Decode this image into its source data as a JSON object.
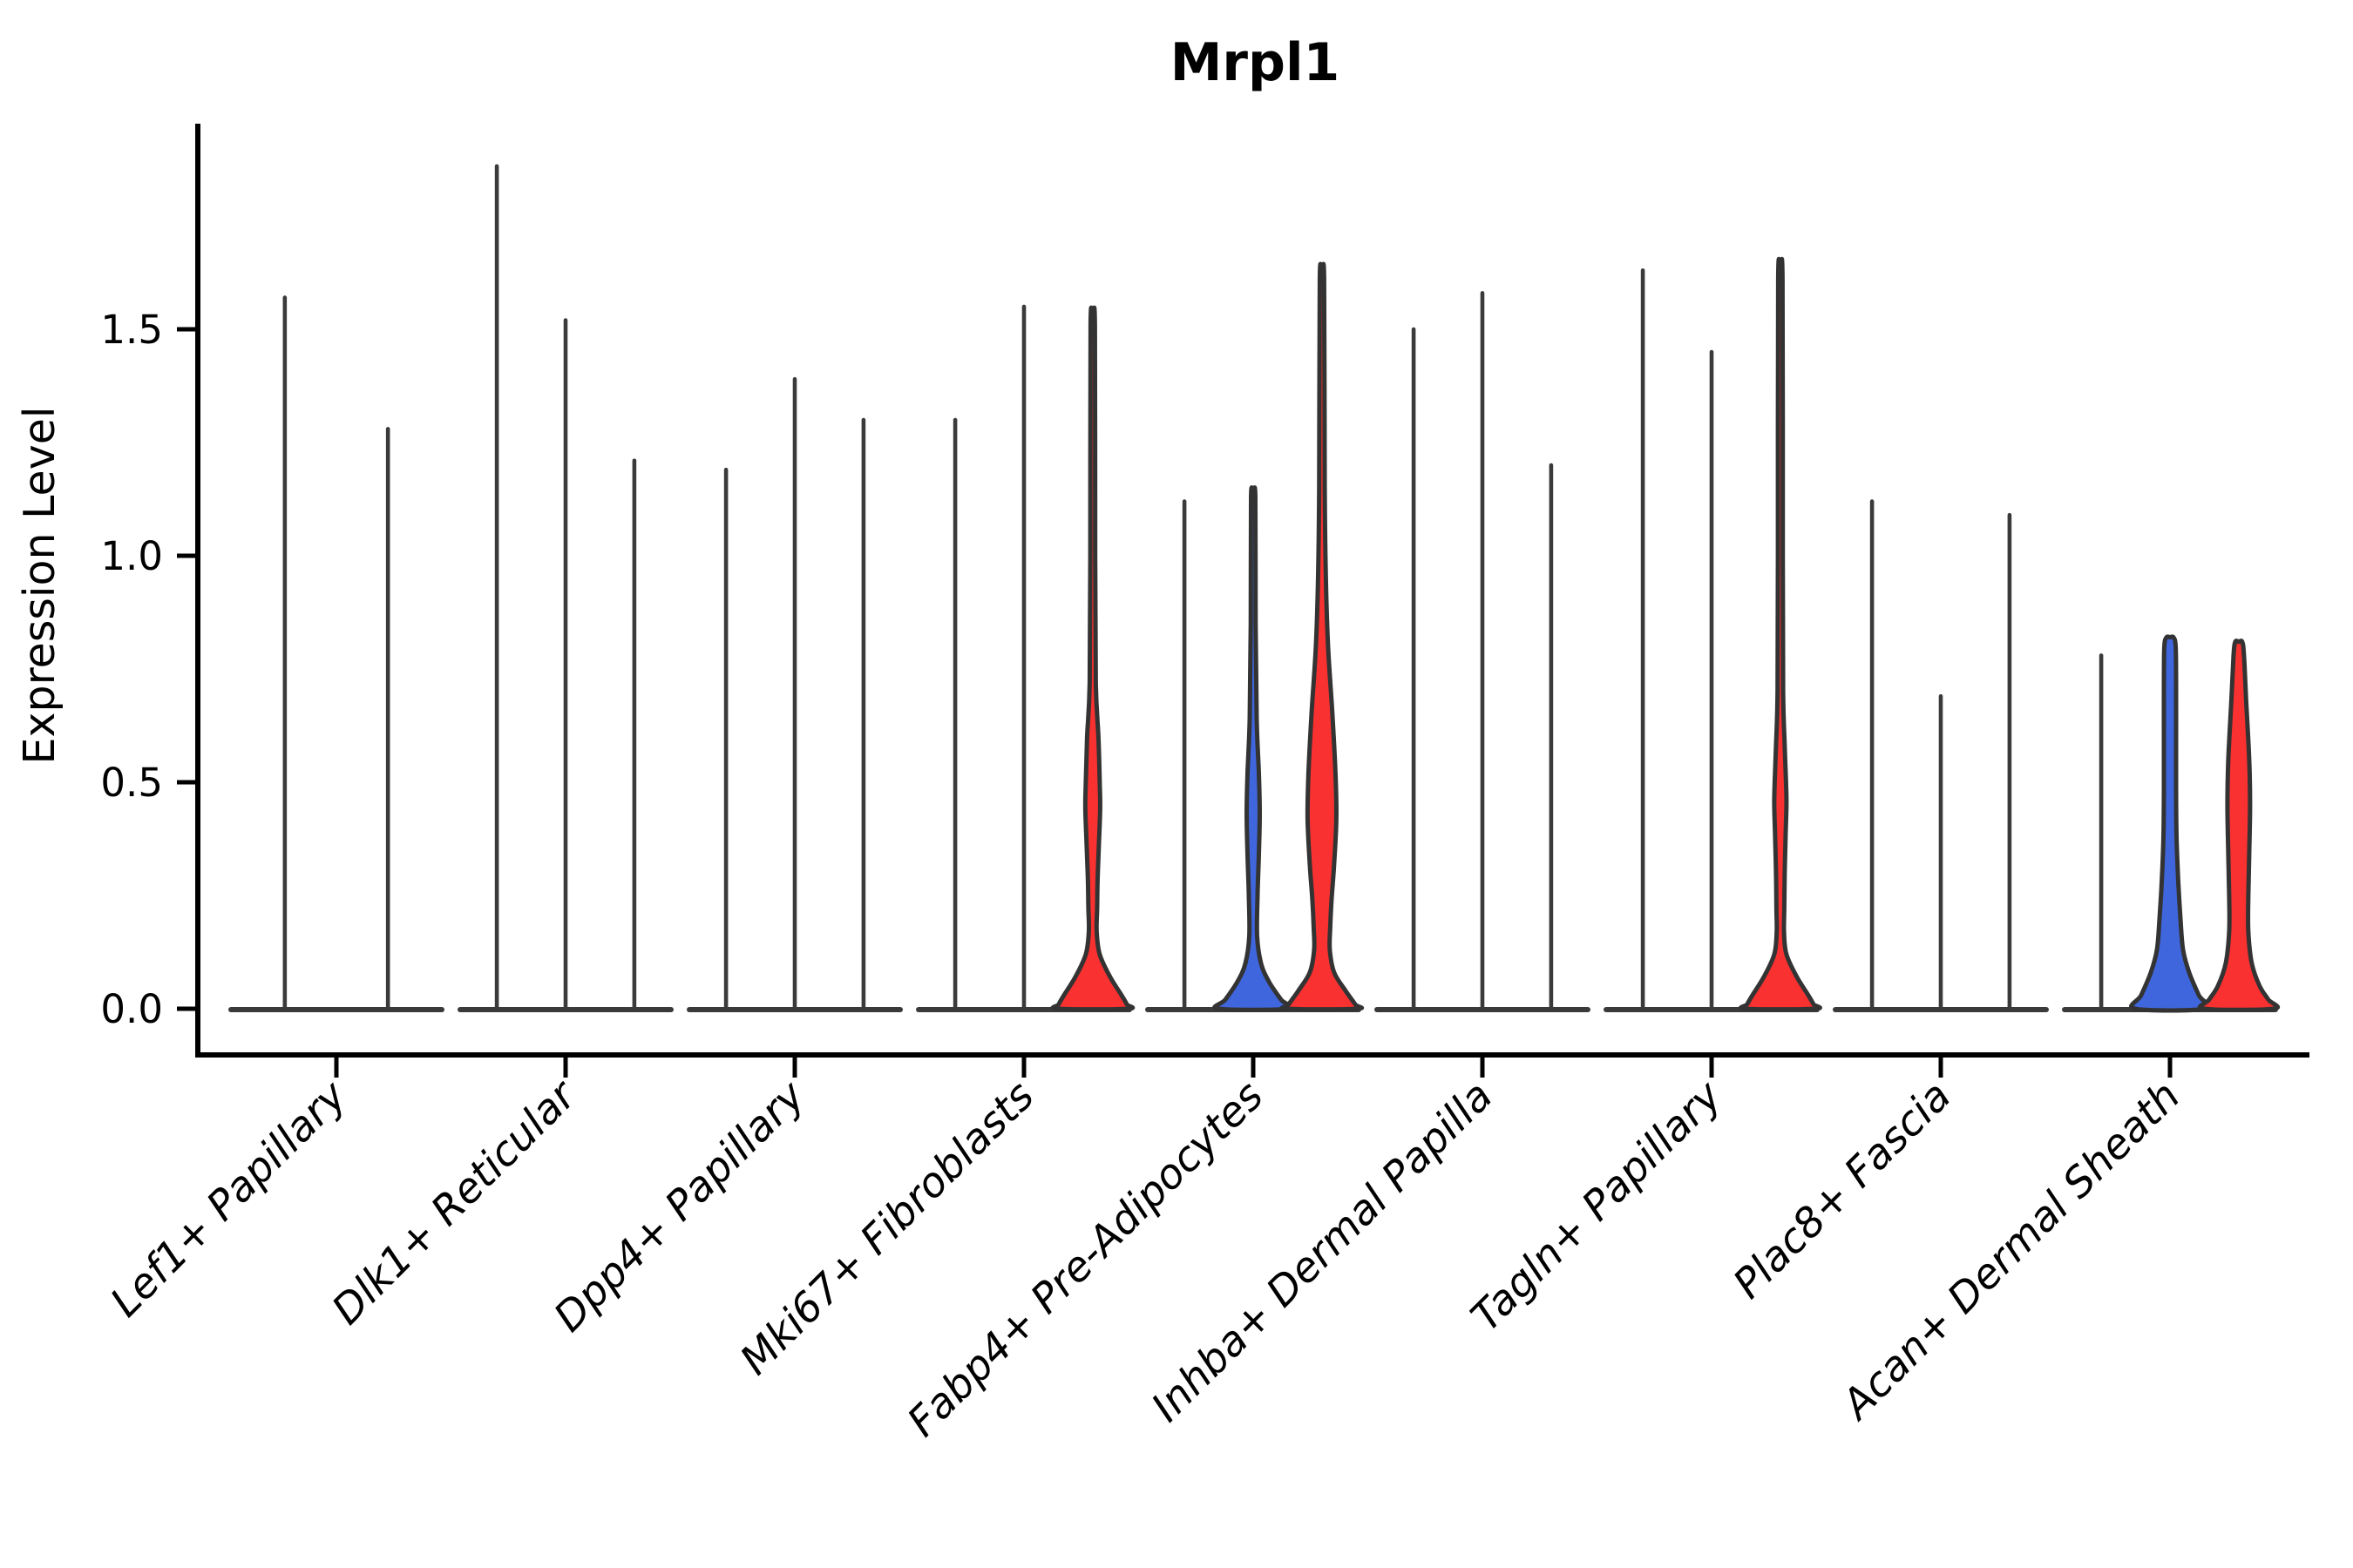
{
  "chart_data": {
    "type": "violin",
    "title": "Mrpl1",
    "ylabel": "Expression Level",
    "xlabel": "",
    "ylim": [
      0,
      1.95
    ],
    "grid": false,
    "legend": "none",
    "ytick_labels": [
      "0.0",
      "0.5",
      "1.0",
      "1.5"
    ],
    "ytick_values": [
      0.0,
      0.5,
      1.0,
      1.5
    ],
    "colors": {
      "red_fill": "#f93131",
      "blue_fill": "#3f66dc",
      "violin_outline": "#333333",
      "spike_line": "#3a3a3a",
      "axis": "#000000"
    },
    "categories": [
      "Lef1+ Papillary",
      "Dlk1+ Reticular",
      "Dpp4+ Papillary",
      "Mki67+ Fibroblasts",
      "Fabp4+ Pre-Adipocytes",
      "Inhba+ Dermal Papilla",
      "Tagln+ Papillary",
      "Plac8+ Fascia",
      "Acan+ Dermal Sheath"
    ],
    "groups": [
      {
        "category": "Lef1+ Papillary",
        "violins": [
          {
            "offset": -0.225,
            "max": 1.57,
            "fill": "none",
            "shape": "spike"
          },
          {
            "offset": 0.225,
            "max": 1.28,
            "fill": "none",
            "shape": "spike"
          }
        ]
      },
      {
        "category": "Dlk1+ Reticular",
        "violins": [
          {
            "offset": -0.3,
            "max": 1.86,
            "fill": "none",
            "shape": "spike"
          },
          {
            "offset": 0,
            "max": 1.52,
            "fill": "none",
            "shape": "spike"
          },
          {
            "offset": 0.3,
            "max": 1.21,
            "fill": "none",
            "shape": "spike"
          }
        ]
      },
      {
        "category": "Dpp4+ Papillary",
        "violins": [
          {
            "offset": -0.3,
            "max": 1.19,
            "fill": "none",
            "shape": "spike"
          },
          {
            "offset": 0,
            "max": 1.39,
            "fill": "none",
            "shape": "spike"
          },
          {
            "offset": 0.3,
            "max": 1.3,
            "fill": "none",
            "shape": "spike"
          }
        ]
      },
      {
        "category": "Mki67+ Fibroblasts",
        "violins": [
          {
            "offset": -0.3,
            "max": 1.3,
            "fill": "none",
            "shape": "spike"
          },
          {
            "offset": 0,
            "max": 1.55,
            "fill": "none",
            "shape": "spike"
          },
          {
            "offset": 0.3,
            "max": 1.51,
            "fill": "red",
            "shape": "violin",
            "profile": [
              [
                1.51,
                2.5
              ],
              [
                1.0,
                2.8
              ],
              [
                0.72,
                3.5
              ],
              [
                0.6,
                6.5
              ],
              [
                0.5,
                8
              ],
              [
                0.44,
                8.5
              ],
              [
                0.36,
                7
              ],
              [
                0.28,
                5.5
              ],
              [
                0.22,
                5
              ],
              [
                0.17,
                4.5
              ],
              [
                0.12,
                8
              ],
              [
                0.07,
                20
              ],
              [
                0.03,
                33
              ],
              [
                0.01,
                39
              ],
              [
                0,
                40
              ]
            ]
          }
        ]
      },
      {
        "category": "Fabp4+ Pre-Adipocytes",
        "violins": [
          {
            "offset": -0.3,
            "max": 1.12,
            "fill": "none",
            "shape": "spike"
          },
          {
            "offset": 0,
            "max": 1.13,
            "fill": "blue",
            "shape": "violin",
            "profile": [
              [
                1.13,
                2.5
              ],
              [
                0.85,
                2.8
              ],
              [
                0.64,
                4
              ],
              [
                0.52,
                6.5
              ],
              [
                0.43,
                7.5
              ],
              [
                0.34,
                6.5
              ],
              [
                0.25,
                5
              ],
              [
                0.16,
                4.5
              ],
              [
                0.1,
                9
              ],
              [
                0.06,
                18
              ],
              [
                0.02,
                32
              ],
              [
                0,
                40
              ]
            ]
          },
          {
            "offset": 0.3,
            "max": 1.61,
            "fill": "red",
            "shape": "violin",
            "profile": [
              [
                1.61,
                2.5
              ],
              [
                1.15,
                3.2
              ],
              [
                0.95,
                4.5
              ],
              [
                0.8,
                7
              ],
              [
                0.65,
                12
              ],
              [
                0.52,
                15.5
              ],
              [
                0.42,
                16.5
              ],
              [
                0.32,
                14
              ],
              [
                0.24,
                11
              ],
              [
                0.18,
                9.5
              ],
              [
                0.13,
                9
              ],
              [
                0.08,
                14
              ],
              [
                0.04,
                27
              ],
              [
                0.01,
                38
              ],
              [
                0,
                40
              ]
            ]
          }
        ]
      },
      {
        "category": "Inhba+ Dermal Papilla",
        "violins": [
          {
            "offset": -0.3,
            "max": 1.5,
            "fill": "none",
            "shape": "spike"
          },
          {
            "offset": 0,
            "max": 1.58,
            "fill": "none",
            "shape": "spike"
          },
          {
            "offset": 0.3,
            "max": 1.2,
            "fill": "none",
            "shape": "spike"
          }
        ]
      },
      {
        "category": "Tagln+ Papillary",
        "violins": [
          {
            "offset": -0.3,
            "max": 1.63,
            "fill": "none",
            "shape": "spike"
          },
          {
            "offset": 0,
            "max": 1.45,
            "fill": "none",
            "shape": "spike"
          },
          {
            "offset": 0.3,
            "max": 1.61,
            "fill": "red",
            "shape": "violin",
            "profile": [
              [
                1.61,
                2.5
              ],
              [
                1.0,
                2.8
              ],
              [
                0.7,
                3.2
              ],
              [
                0.58,
                5
              ],
              [
                0.5,
                6.5
              ],
              [
                0.45,
                7
              ],
              [
                0.38,
                6
              ],
              [
                0.3,
                5
              ],
              [
                0.22,
                4.5
              ],
              [
                0.17,
                4.2
              ],
              [
                0.12,
                7
              ],
              [
                0.07,
                19
              ],
              [
                0.03,
                32
              ],
              [
                0.01,
                38
              ],
              [
                0,
                40
              ]
            ]
          }
        ]
      },
      {
        "category": "Plac8+ Fascia",
        "violins": [
          {
            "offset": -0.3,
            "max": 1.12,
            "fill": "none",
            "shape": "spike"
          },
          {
            "offset": 0,
            "max": 0.69,
            "fill": "none",
            "shape": "spike"
          },
          {
            "offset": 0.3,
            "max": 1.09,
            "fill": "none",
            "shape": "spike"
          }
        ]
      },
      {
        "category": "Acan+ Dermal Sheath",
        "violins": [
          {
            "offset": -0.3,
            "max": 0.78,
            "fill": "none",
            "shape": "spike"
          },
          {
            "offset": 0,
            "max": 0.82,
            "fill": "blue",
            "shape": "violin",
            "profile": [
              [
                0.82,
                4
              ],
              [
                0.8,
                6.5
              ],
              [
                0.72,
                7
              ],
              [
                0.6,
                7
              ],
              [
                0.48,
                7
              ],
              [
                0.38,
                7.5
              ],
              [
                0.28,
                9.5
              ],
              [
                0.2,
                12
              ],
              [
                0.13,
                15
              ],
              [
                0.08,
                22
              ],
              [
                0.03,
                33
              ],
              [
                0,
                40
              ]
            ]
          },
          {
            "offset": 0.3,
            "max": 0.81,
            "fill": "red",
            "shape": "violin",
            "profile": [
              [
                0.81,
                4
              ],
              [
                0.78,
                6
              ],
              [
                0.68,
                8.5
              ],
              [
                0.55,
                12
              ],
              [
                0.45,
                13
              ],
              [
                0.34,
                12
              ],
              [
                0.25,
                11
              ],
              [
                0.17,
                11
              ],
              [
                0.1,
                15
              ],
              [
                0.05,
                24
              ],
              [
                0.02,
                34
              ],
              [
                0,
                40
              ]
            ]
          }
        ]
      }
    ]
  }
}
